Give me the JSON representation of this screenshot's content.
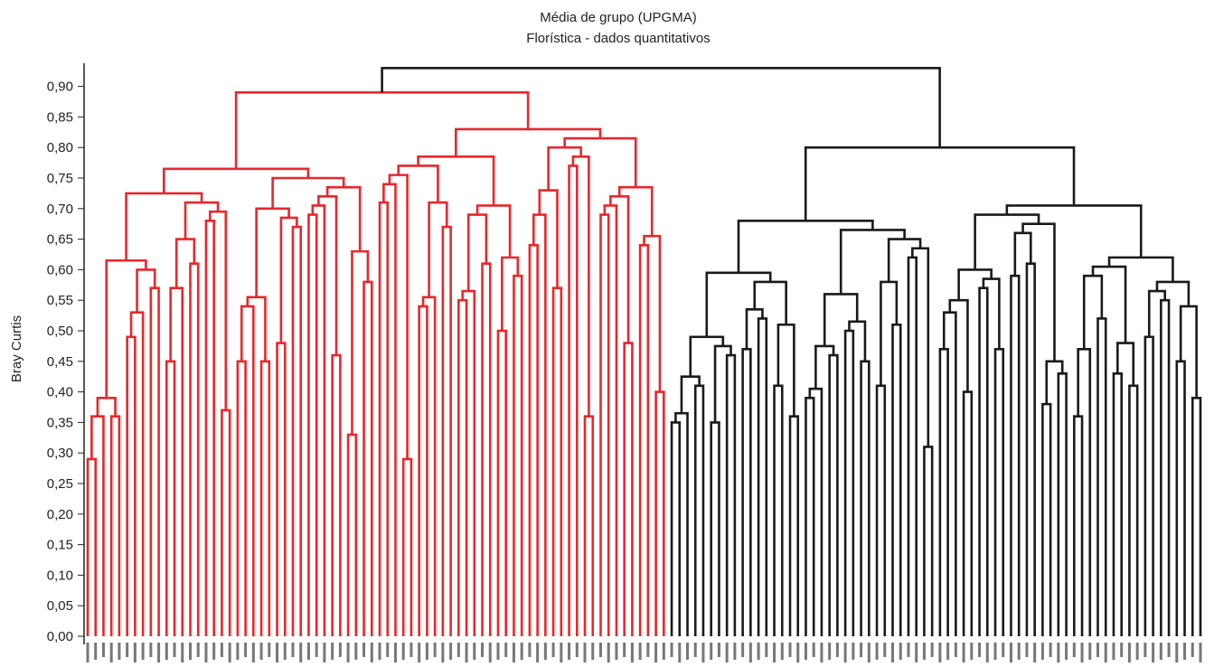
{
  "chart_data": {
    "type": "dendrogram",
    "title": "Média de grupo (UPGMA)",
    "subtitle": "Florística - dados quantitativos",
    "ylabel": "Bray Curtis",
    "ylim": [
      0,
      0.95
    ],
    "yticks": [
      "0,00",
      "0,05",
      "0,10",
      "0,15",
      "0,20",
      "0,25",
      "0,30",
      "0,35",
      "0,40",
      "0,45",
      "0,50",
      "0,55",
      "0,60",
      "0,65",
      "0,70",
      "0,75",
      "0,80",
      "0,85",
      "0,90"
    ],
    "root_height": 0.93,
    "clusters": [
      {
        "color": "#e8272c",
        "leaf_count": 74,
        "merge_height": 0.89,
        "merge_heights": [
          0.29,
          0.36,
          0.36,
          0.39,
          0.49,
          0.53,
          0.57,
          0.6,
          0.45,
          0.45,
          0.57,
          0.61,
          0.65,
          0.68,
          0.37,
          0.5,
          0.61,
          0.66,
          0.45,
          0.54,
          0.45,
          0.47,
          0.48,
          0.67,
          0.39,
          0.65,
          0.69,
          0.5,
          0.46,
          0.54,
          0.33,
          0.58,
          0.63,
          0.55,
          0.66,
          0.55,
          0.71,
          0.74,
          0.29,
          0.43,
          0.54,
          0.47,
          0.67,
          0.71,
          0.53,
          0.55,
          0.56,
          0.61,
          0.69,
          0.5,
          0.59,
          0.62,
          0.56,
          0.52,
          0.64,
          0.69,
          0.57,
          0.73,
          0.77,
          0.36,
          0.54,
          0.66,
          0.69,
          0.63,
          0.48,
          0.55,
          0.64,
          0.4,
          0.63,
          0.73,
          0.57,
          0.46,
          0.62,
          0.7,
          0.76,
          0.8,
          0.81,
          0.63,
          0.57,
          0.73,
          0.57,
          0.62,
          0.74,
          0.55,
          0.67,
          0.75,
          0.76,
          0.54,
          0.7,
          0.55,
          0.55,
          0.77,
          0.82,
          0.86,
          0.73,
          0.78,
          0.85,
          0.89
        ]
      },
      {
        "color": "#1a1a1a",
        "leaf_count": 68,
        "merge_height": 0.8,
        "merge_heights": [
          0.35,
          0.26,
          0.41,
          0.35,
          0.35,
          0.46,
          0.4,
          0.43,
          0.47,
          0.52,
          0.39,
          0.41,
          0.36,
          0.51,
          0.58,
          0.22,
          0.39,
          0.27,
          0.46,
          0.37,
          0.5,
          0.45,
          0.5,
          0.56,
          0.41,
          0.51,
          0.58,
          0.62,
          0.31,
          0.37,
          0.37,
          0.4,
          0.49,
          0.47,
          0.53,
          0.4,
          0.55,
          0.57,
          0.47,
          0.45,
          0.51,
          0.59,
          0.61,
          0.66,
          0.38,
          0.43,
          0.45,
          0.26,
          0.23,
          0.36,
          0.47,
          0.52,
          0.59,
          0.43,
          0.41,
          0.48,
          0.44,
          0.49,
          0.55,
          0.37,
          0.45,
          0.39,
          0.54,
          0.42,
          0.61,
          0.22,
          0.43,
          0.38,
          0.55,
          0.6,
          0.5,
          0.42,
          0.48,
          0.65,
          0.66,
          0.69,
          0.7,
          0.71,
          0.64,
          0.45,
          0.73,
          0.74,
          0.8
        ]
      }
    ]
  }
}
